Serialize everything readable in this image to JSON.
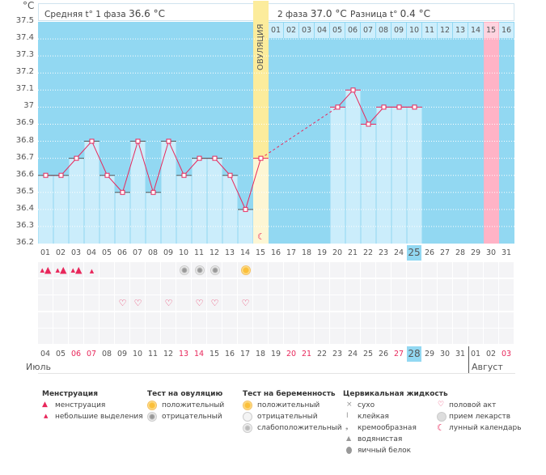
{
  "header": {
    "phase1_label": "Средняя t° 1 фаза",
    "phase1_value": "36.6 °C",
    "phase2_label": "2 фаза",
    "phase2_value": "37.0 °C",
    "diff_label": "Разница t°",
    "diff_value": "0.4 °C",
    "ovulation_label": "ОВУЛЯЦИЯ"
  },
  "chart_data": {
    "type": "bar",
    "ylabel": "°C",
    "ylim": [
      36.2,
      37.5
    ],
    "yticks": [
      "37.5",
      "37.4",
      "37.3",
      "37.2",
      "37.1",
      "37",
      "36.9",
      "36.8",
      "36.7",
      "36.6",
      "36.5",
      "36.4",
      "36.3",
      "36.2"
    ],
    "grid": true,
    "categories": [
      "01",
      "02",
      "03",
      "04",
      "05",
      "06",
      "07",
      "08",
      "09",
      "10",
      "11",
      "12",
      "13",
      "14",
      "15",
      "16",
      "17",
      "18",
      "19",
      "20",
      "21",
      "22",
      "23",
      "24",
      "25",
      "26",
      "27",
      "28",
      "29",
      "30",
      "31"
    ],
    "values": [
      36.6,
      36.6,
      36.7,
      36.8,
      36.6,
      36.5,
      36.8,
      36.5,
      36.8,
      36.6,
      36.7,
      36.7,
      36.6,
      36.4,
      36.7,
      null,
      null,
      null,
      null,
      37.0,
      37.1,
      36.9,
      37.0,
      37.0,
      37.0,
      null,
      null,
      null,
      null,
      null,
      null
    ],
    "ovulation_day": 15,
    "current_day": "25",
    "expected_period_day": 30,
    "phase2_days": [
      "01",
      "02",
      "03",
      "04",
      "05",
      "06",
      "07",
      "08",
      "09",
      "10",
      "11",
      "12",
      "13",
      "14",
      "15",
      "16"
    ]
  },
  "dates": [
    "04",
    "05",
    "06",
    "07",
    "08",
    "09",
    "10",
    "11",
    "12",
    "13",
    "14",
    "15",
    "16",
    "17",
    "18",
    "19",
    "20",
    "21",
    "22",
    "23",
    "24",
    "25",
    "26",
    "27",
    "28",
    "29",
    "30",
    "31",
    "01",
    "02",
    "03"
  ],
  "weekend_dates_idx": [
    2,
    3,
    9,
    10,
    16,
    17,
    23,
    30
  ],
  "today_date": "28",
  "months": {
    "first": "Июль",
    "second": "Август"
  },
  "marks": {
    "menstruation": [
      1,
      2,
      3
    ],
    "spotting": [
      4
    ],
    "ovulation_negative": [
      10,
      11,
      12
    ],
    "ovulation_positive": [
      14
    ],
    "intercourse": [
      6,
      7,
      9,
      11,
      12,
      14
    ],
    "moon": [
      15
    ]
  },
  "legend": {
    "menstruation": {
      "title": "Менструация",
      "items": [
        "менструация",
        "небольшие выделения"
      ]
    },
    "ovulation_test": {
      "title": "Тест на овуляцию",
      "items": [
        "положительный",
        "отрицательный"
      ]
    },
    "pregnancy_test": {
      "title": "Тест на беременность",
      "items": [
        "положительный",
        "отрицательный",
        "слабоположительный"
      ]
    },
    "cervical": {
      "title": "Цервикальная жидкость",
      "items": [
        "сухо",
        "клейкая",
        "кремообразная",
        "водянистая",
        "яичный белок"
      ]
    },
    "other": {
      "items": [
        "половой акт",
        "прием лекарств",
        "лунный календарь"
      ]
    }
  },
  "colors": {
    "plot_bg": "#92d8f2",
    "bar": "#cbedfb",
    "line": "#e8275b",
    "ovulation": "#fcec9c",
    "period": "#ffb3c6"
  }
}
